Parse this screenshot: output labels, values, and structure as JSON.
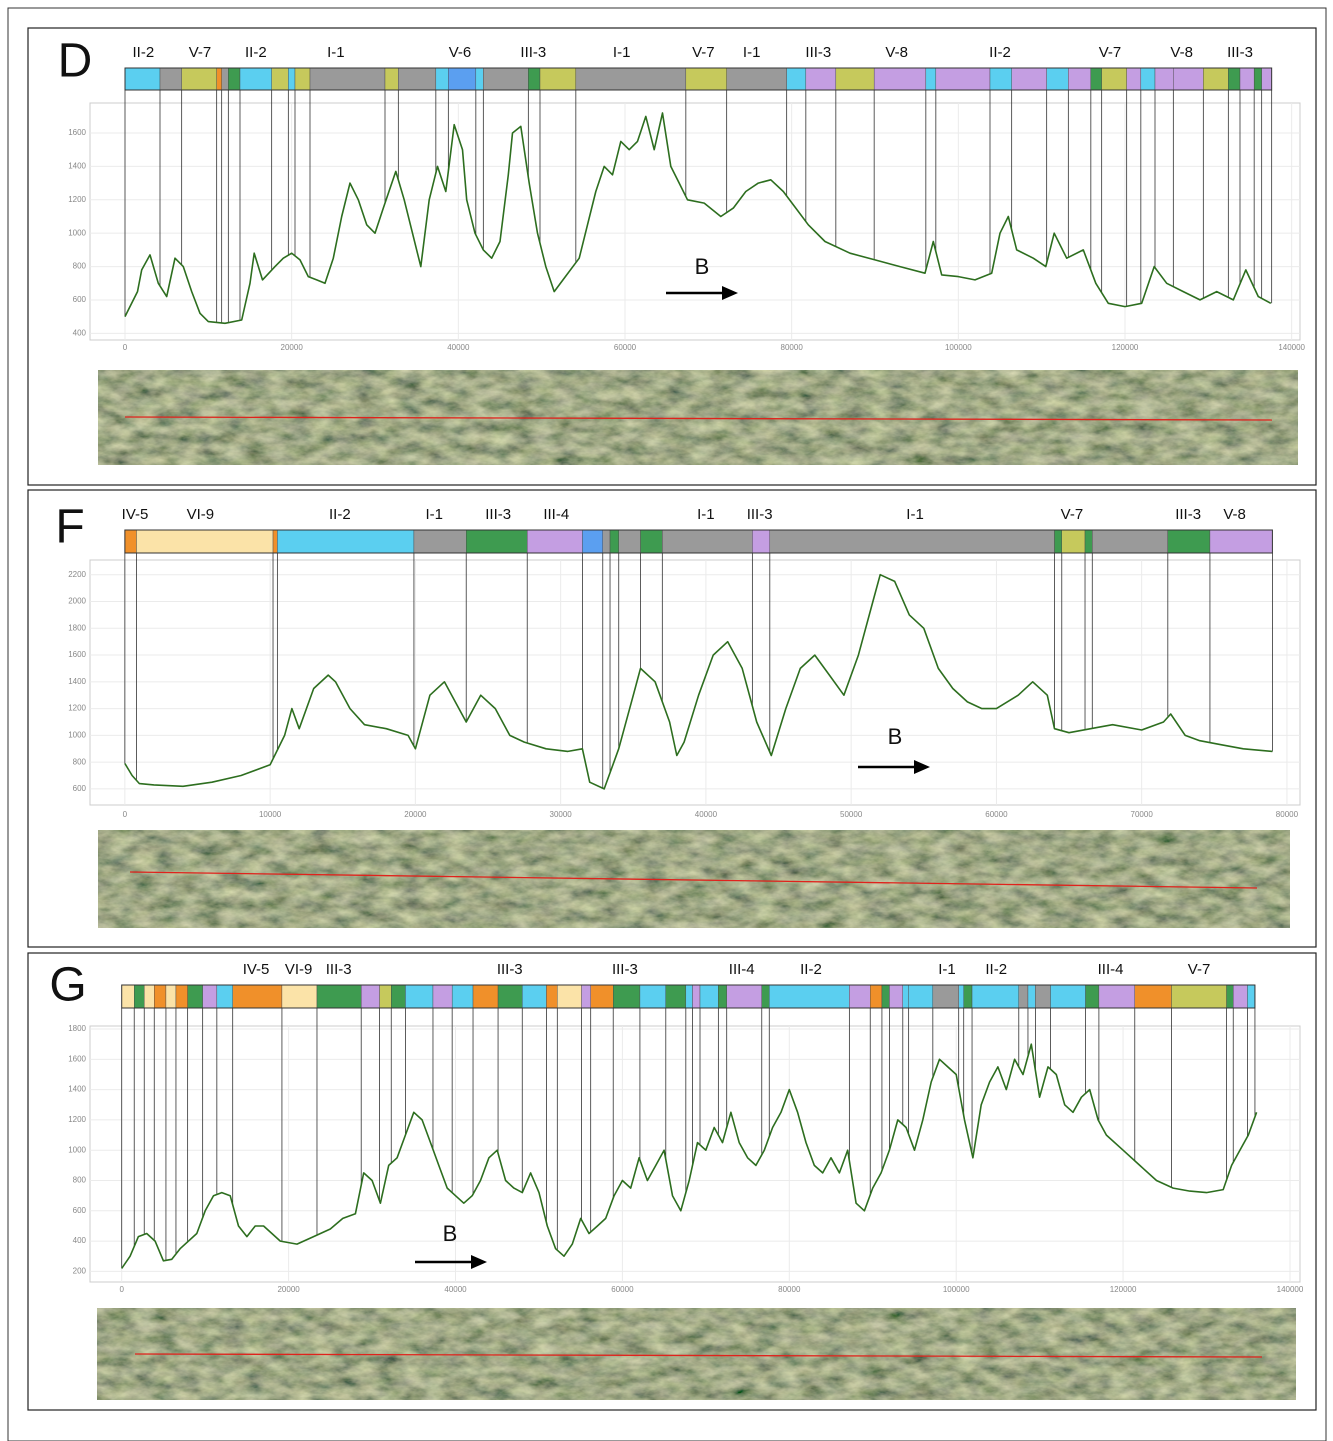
{
  "chart_data": [
    {
      "type": "line",
      "title": "D",
      "annotation": "B",
      "color": "#2d6e1f",
      "grid": true,
      "xlim": [
        -4200,
        141000
      ],
      "ylim": [
        360,
        1780
      ],
      "xticks": [
        0,
        20000,
        40000,
        60000,
        80000,
        100000,
        120000,
        140000
      ],
      "yticks": [
        400,
        600,
        800,
        1000,
        1200,
        1400,
        1600
      ],
      "x": [
        0,
        1500,
        2000,
        3000,
        4000,
        5000,
        6000,
        7000,
        8000,
        9000,
        10000,
        12000,
        14000,
        15000,
        15500,
        16500,
        18000,
        19000,
        20000,
        21000,
        22000,
        23000,
        24000,
        25000,
        26000,
        27000,
        28000,
        29000,
        30000,
        31000,
        32500,
        33500,
        34500,
        35500,
        36500,
        37500,
        38500,
        39500,
        40500,
        41000,
        42000,
        43000,
        44000,
        45000,
        46000,
        46500,
        47500,
        48500,
        49500,
        50500,
        51500,
        53000,
        54500,
        55500,
        56500,
        57500,
        58500,
        59500,
        60500,
        61500,
        62500,
        63500,
        64500,
        65500,
        66500,
        67500,
        69500,
        71500,
        73000,
        74500,
        76000,
        77500,
        79000,
        80500,
        82000,
        84000,
        87000,
        90000,
        93000,
        96000,
        97000,
        98000,
        100000,
        102000,
        104000,
        105000,
        106000,
        107000,
        109000,
        110500,
        111500,
        113000,
        115000,
        116500,
        118000,
        120000,
        122000,
        123500,
        125000,
        127000,
        129000,
        131000,
        133000,
        134500,
        136000,
        137500
      ],
      "values": [
        500,
        650,
        780,
        870,
        700,
        620,
        850,
        800,
        650,
        520,
        470,
        460,
        480,
        700,
        880,
        720,
        800,
        850,
        880,
        840,
        740,
        720,
        700,
        850,
        1100,
        1300,
        1200,
        1050,
        1000,
        1150,
        1370,
        1200,
        1000,
        800,
        1200,
        1400,
        1250,
        1650,
        1500,
        1200,
        1000,
        900,
        850,
        950,
        1350,
        1600,
        1640,
        1300,
        1000,
        800,
        650,
        750,
        850,
        1050,
        1250,
        1400,
        1350,
        1550,
        1500,
        1550,
        1700,
        1500,
        1720,
        1400,
        1300,
        1200,
        1180,
        1100,
        1150,
        1250,
        1300,
        1320,
        1250,
        1150,
        1050,
        950,
        880,
        840,
        800,
        760,
        950,
        750,
        740,
        720,
        760,
        1000,
        1100,
        900,
        850,
        800,
        1000,
        850,
        900,
        700,
        580,
        560,
        580,
        800,
        700,
        650,
        600,
        650,
        600,
        780,
        620,
        580
      ],
      "zone_edges": [
        0,
        4200,
        6800,
        11000,
        11600,
        12400,
        13800,
        17600,
        19600,
        20400,
        22200,
        31200,
        32800,
        37300,
        38800,
        42100,
        43000,
        48400,
        49800,
        54100,
        67300,
        72200,
        79400,
        81700,
        85300,
        89900,
        96100,
        97300,
        103800,
        106400,
        110600,
        113200,
        115900,
        117200,
        120200,
        121900,
        123600,
        125800,
        129400,
        132400,
        133800,
        135500,
        136400,
        137600
      ],
      "zone_colors": [
        "#5bcff0",
        "#9a9a9a",
        "#c6c95c",
        "#f0902a",
        "#9a9a9a",
        "#3e9b50",
        "#5bcff0",
        "#c6c95c",
        "#5bcff0",
        "#c6c95c",
        "#9a9a9a",
        "#c6c95c",
        "#9a9a9a",
        "#5bcff0",
        "#5b9ff0",
        "#5bcff0",
        "#9a9a9a",
        "#3e9b50",
        "#c6c95c",
        "#9a9a9a",
        "#c6c95c",
        "#9a9a9a",
        "#5bcff0",
        "#c49ee2",
        "#c6c95c",
        "#c49ee2",
        "#5bcff0",
        "#c49ee2",
        "#5bcff0",
        "#c49ee2",
        "#5bcff0",
        "#c49ee2",
        "#3e9b50",
        "#c6c95c",
        "#c49ee2",
        "#5bcff0",
        "#c49ee2",
        "#c49ee2",
        "#c6c95c",
        "#3e9b50",
        "#c49ee2",
        "#3e9b50",
        "#c49ee2"
      ],
      "zone_labels": [
        {
          "x": 2200,
          "label": "II-2"
        },
        {
          "x": 9000,
          "label": "V-7"
        },
        {
          "x": 15700,
          "label": "II-2"
        },
        {
          "x": 25300,
          "label": "I-1"
        },
        {
          "x": 40200,
          "label": "V-6"
        },
        {
          "x": 49000,
          "label": "III-3"
        },
        {
          "x": 59600,
          "label": "I-1"
        },
        {
          "x": 69400,
          "label": "V-7"
        },
        {
          "x": 75200,
          "label": "I-1"
        },
        {
          "x": 83200,
          "label": "III-3"
        },
        {
          "x": 92600,
          "label": "V-8"
        },
        {
          "x": 105000,
          "label": "II-2"
        },
        {
          "x": 118200,
          "label": "V-7"
        },
        {
          "x": 126800,
          "label": "V-8"
        },
        {
          "x": 133800,
          "label": "III-3"
        }
      ]
    },
    {
      "type": "line",
      "title": "F",
      "annotation": "B",
      "color": "#2d6e1f",
      "grid": true,
      "xlim": [
        -2400,
        80900
      ],
      "ylim": [
        480,
        2310
      ],
      "xticks": [
        0,
        10000,
        20000,
        30000,
        40000,
        50000,
        60000,
        70000,
        80000
      ],
      "yticks": [
        600,
        800,
        1000,
        1200,
        1400,
        1600,
        1800,
        2000,
        2200
      ],
      "x": [
        0,
        500,
        1000,
        2000,
        4000,
        6000,
        8000,
        10000,
        11000,
        11500,
        12000,
        13000,
        14000,
        14500,
        15500,
        16500,
        18000,
        19500,
        20000,
        21000,
        22000,
        22500,
        23500,
        24500,
        25500,
        26500,
        27500,
        29000,
        30500,
        31500,
        32000,
        33000,
        34000,
        35000,
        35500,
        36500,
        37500,
        38000,
        38500,
        39500,
        40500,
        41500,
        42500,
        43500,
        44500,
        45500,
        46500,
        47500,
        48500,
        49500,
        50500,
        51500,
        52000,
        53000,
        54000,
        55000,
        56000,
        57000,
        58000,
        59000,
        60000,
        61500,
        62500,
        63500,
        64000,
        65000,
        67000,
        68000,
        70000,
        71500,
        72000,
        73000,
        74000,
        75500,
        77000,
        79000
      ],
      "values": [
        790,
        700,
        640,
        630,
        620,
        650,
        700,
        780,
        1000,
        1200,
        1050,
        1350,
        1450,
        1400,
        1200,
        1080,
        1050,
        1000,
        900,
        1300,
        1400,
        1300,
        1100,
        1300,
        1200,
        1000,
        950,
        900,
        880,
        900,
        650,
        600,
        900,
        1300,
        1500,
        1400,
        1100,
        850,
        950,
        1300,
        1600,
        1700,
        1500,
        1100,
        850,
        1200,
        1500,
        1600,
        1450,
        1300,
        1600,
        2000,
        2200,
        2150,
        1900,
        1800,
        1500,
        1350,
        1250,
        1200,
        1200,
        1300,
        1400,
        1300,
        1050,
        1020,
        1060,
        1080,
        1040,
        1100,
        1160,
        1000,
        960,
        930,
        900,
        880
      ],
      "zone_edges": [
        0,
        800,
        10200,
        10500,
        19900,
        23500,
        27700,
        31500,
        32900,
        33400,
        34000,
        35500,
        37000,
        43200,
        44400,
        64000,
        64500,
        66100,
        66600,
        71800,
        74700,
        79000
      ],
      "zone_colors": [
        "#f0902a",
        "#fbe3a8",
        "#f0902a",
        "#5bcff0",
        "#9a9a9a",
        "#3e9b50",
        "#c49ee2",
        "#5b9ff0",
        "#9a9a9a",
        "#3e9b50",
        "#9a9a9a",
        "#3e9b50",
        "#9a9a9a",
        "#c49ee2",
        "#9a9a9a",
        "#3e9b50",
        "#c6c95c",
        "#3e9b50",
        "#9a9a9a",
        "#3e9b50",
        "#c49ee2"
      ],
      "zone_labels": [
        {
          "x": 700,
          "label": "IV-5"
        },
        {
          "x": 5200,
          "label": "VI-9"
        },
        {
          "x": 14800,
          "label": "II-2"
        },
        {
          "x": 21300,
          "label": "I-1"
        },
        {
          "x": 25700,
          "label": "III-3"
        },
        {
          "x": 29700,
          "label": "III-4"
        },
        {
          "x": 40000,
          "label": "I-1"
        },
        {
          "x": 43700,
          "label": "III-3"
        },
        {
          "x": 54400,
          "label": "I-1"
        },
        {
          "x": 65200,
          "label": "V-7"
        },
        {
          "x": 73200,
          "label": "III-3"
        },
        {
          "x": 76400,
          "label": "V-8"
        }
      ]
    },
    {
      "type": "line",
      "title": "G",
      "annotation": "B",
      "color": "#2d6e1f",
      "grid": true,
      "xlim": [
        -3800,
        141200
      ],
      "ylim": [
        130,
        1820
      ],
      "xticks": [
        0,
        20000,
        40000,
        60000,
        80000,
        100000,
        120000,
        140000
      ],
      "yticks": [
        200,
        400,
        600,
        800,
        1000,
        1200,
        1400,
        1600,
        1800
      ],
      "x": [
        0,
        1000,
        2000,
        3000,
        4000,
        5000,
        6000,
        7000,
        9000,
        10000,
        11000,
        12000,
        13000,
        14000,
        15000,
        16000,
        17000,
        18000,
        19000,
        21000,
        23000,
        25000,
        26500,
        28000,
        29000,
        30000,
        31000,
        32000,
        33000,
        34000,
        35000,
        36000,
        37000,
        38000,
        39000,
        40000,
        41000,
        42000,
        43000,
        44000,
        45000,
        46000,
        47000,
        48000,
        49000,
        50000,
        51000,
        52000,
        53000,
        54000,
        55000,
        56000,
        57000,
        58000,
        59000,
        60000,
        61000,
        62000,
        63000,
        64000,
        65000,
        66000,
        67000,
        68000,
        69000,
        70000,
        71000,
        72000,
        73000,
        74000,
        75000,
        76000,
        77000,
        78000,
        79000,
        80000,
        81000,
        82000,
        83000,
        84000,
        85000,
        86000,
        87000,
        88000,
        89000,
        90000,
        91000,
        92000,
        93000,
        94000,
        95000,
        96000,
        97000,
        98000,
        99000,
        100000,
        101000,
        102000,
        103000,
        104000,
        105000,
        106000,
        107000,
        108000,
        109000,
        110000,
        111000,
        112000,
        113000,
        114000,
        115000,
        116000,
        117000,
        118000,
        120000,
        122000,
        124000,
        126000,
        128000,
        130000,
        132000,
        133000,
        134000,
        135000,
        136000
      ],
      "values": [
        220,
        300,
        430,
        450,
        400,
        270,
        280,
        350,
        450,
        600,
        700,
        720,
        700,
        500,
        430,
        500,
        500,
        450,
        400,
        380,
        430,
        480,
        550,
        580,
        850,
        800,
        650,
        900,
        950,
        1100,
        1250,
        1200,
        1050,
        900,
        750,
        700,
        650,
        700,
        800,
        950,
        1000,
        800,
        750,
        720,
        850,
        720,
        500,
        350,
        300,
        380,
        550,
        450,
        500,
        550,
        700,
        800,
        750,
        950,
        800,
        900,
        1000,
        700,
        600,
        800,
        1050,
        1000,
        1150,
        1050,
        1250,
        1050,
        950,
        900,
        1000,
        1150,
        1250,
        1400,
        1250,
        1050,
        900,
        850,
        950,
        850,
        1000,
        650,
        600,
        750,
        850,
        1000,
        1200,
        1150,
        1000,
        1200,
        1450,
        1600,
        1550,
        1500,
        1200,
        950,
        1300,
        1450,
        1550,
        1400,
        1600,
        1500,
        1700,
        1350,
        1550,
        1500,
        1300,
        1250,
        1350,
        1400,
        1200,
        1100,
        1000,
        900,
        800,
        750,
        730,
        720,
        740,
        900,
        1000,
        1100,
        1250
      ],
      "zone_edges": [
        0,
        1500,
        2700,
        3900,
        5300,
        6500,
        7900,
        9700,
        11400,
        13300,
        19200,
        23400,
        28700,
        30900,
        32300,
        34000,
        37300,
        39600,
        42100,
        45100,
        48000,
        50900,
        52200,
        55100,
        56200,
        58900,
        62100,
        65200,
        67600,
        68400,
        69300,
        71500,
        72500,
        76700,
        77600,
        87200,
        89700,
        91100,
        92000,
        93600,
        94300,
        97200,
        100300,
        100900,
        101900,
        107500,
        108600,
        109500,
        111300,
        115500,
        117100,
        121400,
        125800,
        132400,
        133200,
        134900,
        135800
      ],
      "zone_colors": [
        "#fbe3a8",
        "#3e9b50",
        "#fbe3a8",
        "#f0902a",
        "#fbe3a8",
        "#f0902a",
        "#3e9b50",
        "#c49ee2",
        "#5bcff0",
        "#f0902a",
        "#fbe3a8",
        "#3e9b50",
        "#c49ee2",
        "#c6c95c",
        "#3e9b50",
        "#5bcff0",
        "#c49ee2",
        "#5bcff0",
        "#f0902a",
        "#3e9b50",
        "#5bcff0",
        "#f0902a",
        "#fbe3a8",
        "#c49ee2",
        "#f0902a",
        "#3e9b50",
        "#5bcff0",
        "#3e9b50",
        "#5bcff0",
        "#c49ee2",
        "#5bcff0",
        "#3e9b50",
        "#c49ee2",
        "#3e9b50",
        "#5bcff0",
        "#c49ee2",
        "#f0902a",
        "#3e9b50",
        "#c49ee2",
        "#5bcff0",
        "#5bcff0",
        "#9a9a9a",
        "#5bcff0",
        "#3e9b50",
        "#5bcff0",
        "#9a9a9a",
        "#5bcff0",
        "#9a9a9a",
        "#5bcff0",
        "#3e9b50",
        "#c49ee2",
        "#f0902a",
        "#c6c95c",
        "#3e9b50",
        "#c49ee2",
        "#5bcff0"
      ],
      "zone_labels": [
        {
          "x": 16100,
          "label": "IV-5"
        },
        {
          "x": 21200,
          "label": "VI-9"
        },
        {
          "x": 26000,
          "label": "III-3"
        },
        {
          "x": 46500,
          "label": "III-3"
        },
        {
          "x": 60300,
          "label": "III-3"
        },
        {
          "x": 74300,
          "label": "III-4"
        },
        {
          "x": 82600,
          "label": "II-2"
        },
        {
          "x": 98900,
          "label": "I-1"
        },
        {
          "x": 104800,
          "label": "II-2"
        },
        {
          "x": 118500,
          "label": "III-4"
        },
        {
          "x": 129100,
          "label": "V-7"
        }
      ]
    }
  ]
}
